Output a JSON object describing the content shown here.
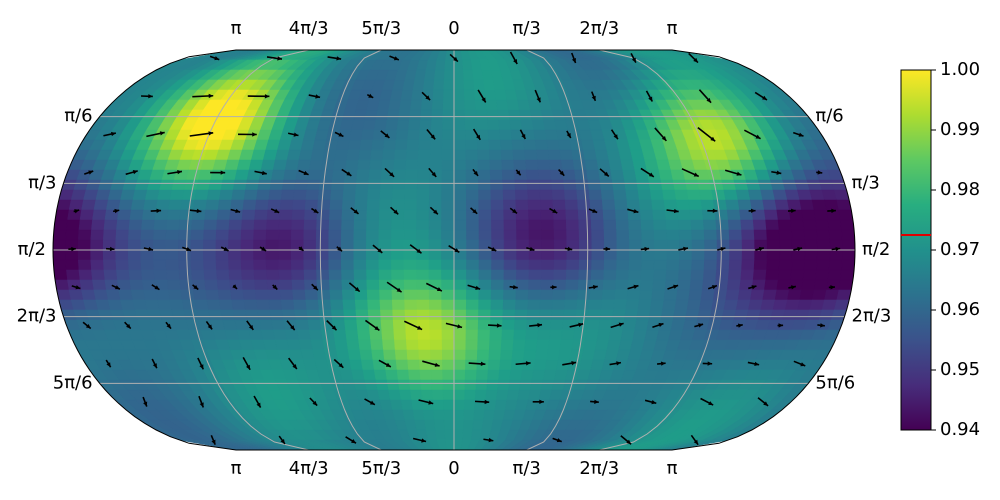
{
  "chart_data": {
    "type": "heatmap",
    "projection": "kavrayskiy-like",
    "colormap": "viridis",
    "top_longitude_labels": [
      "π",
      "4π/3",
      "5π/3",
      "0",
      "π/3",
      "2π/3",
      "π"
    ],
    "bottom_longitude_labels": [
      "π",
      "4π/3",
      "5π/3",
      "0",
      "π/3",
      "2π/3",
      "π"
    ],
    "latitude_labels": [
      {
        "label": "π/6",
        "theta_over_pi": 0.1667
      },
      {
        "label": "π/3",
        "theta_over_pi": 0.3333
      },
      {
        "label": "π/2",
        "theta_over_pi": 0.5
      },
      {
        "label": "2π/3",
        "theta_over_pi": 0.6667
      },
      {
        "label": "5π/6",
        "theta_over_pi": 0.8333
      }
    ],
    "gridline_color": "#b0b0b0",
    "colorbar": {
      "min": 0.94,
      "max": 1.0,
      "ticks": [
        "0.94",
        "0.95",
        "0.96",
        "0.97",
        "0.98",
        "0.99",
        "1.00"
      ],
      "tick_values": [
        0.94,
        0.95,
        0.96,
        0.97,
        0.98,
        0.99,
        1.0
      ],
      "marker_value": 0.9725,
      "marker_color": "#e00000"
    },
    "field_features": [
      {
        "note": "high",
        "lon_frac": -0.66,
        "theta_frac": 0.17,
        "value": 0.998
      },
      {
        "note": "high",
        "lon_frac": -0.08,
        "theta_frac": 0.72,
        "value": 1.0
      },
      {
        "note": "high",
        "lon_frac": 0.72,
        "theta_frac": 0.22,
        "value": 0.992
      },
      {
        "note": "low",
        "lon_frac": -0.4,
        "theta_frac": 0.49,
        "value": 0.945
      },
      {
        "note": "low",
        "lon_frac": 0.23,
        "theta_frac": 0.49,
        "value": 0.948
      },
      {
        "note": "low",
        "lon_frac": 0.93,
        "theta_frac": 0.53,
        "value": 0.941
      },
      {
        "note": "low",
        "lon_frac": 0.83,
        "theta_frac": 0.44,
        "value": 0.951
      },
      {
        "note": "low",
        "lon_frac": -0.93,
        "theta_frac": 0.49,
        "value": 0.952
      }
    ]
  }
}
